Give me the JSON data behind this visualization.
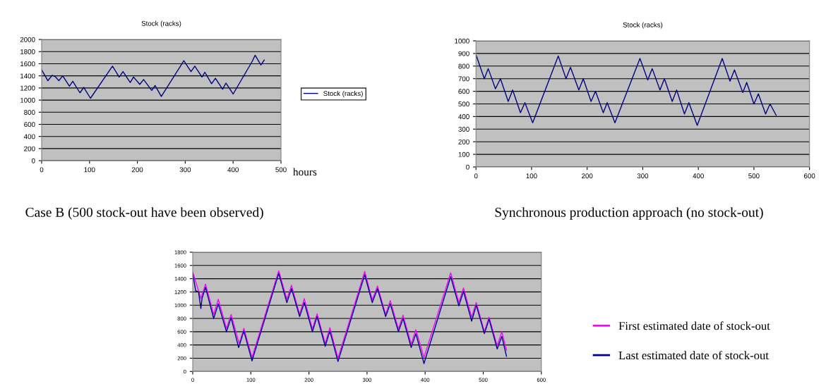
{
  "chart_data": [
    {
      "type": "line",
      "title": "Stock (racks)",
      "xlabel": "hours",
      "annotations": [
        "Case B (500 stock-out have been observed)"
      ],
      "xlim": [
        0,
        500
      ],
      "xticks": [
        0,
        100,
        200,
        300,
        400,
        500
      ],
      "ylim": [
        0,
        2000
      ],
      "yticks": [
        0,
        200,
        400,
        600,
        800,
        1000,
        1200,
        1400,
        1600,
        1800,
        2000
      ],
      "grid": "y",
      "legend": "right",
      "marker": "none",
      "line_style": "solid",
      "series": [
        {
          "name": "Stock (racks)",
          "color": "#000080",
          "x": [
            0,
            13,
            22,
            28,
            36,
            44,
            58,
            65,
            80,
            88,
            102,
            148,
            162,
            170,
            185,
            192,
            205,
            213,
            230,
            237,
            250,
            290,
            297,
            312,
            320,
            335,
            341,
            355,
            363,
            378,
            385,
            400,
            440,
            446,
            458,
            465
          ],
          "values": [
            1500,
            1320,
            1410,
            1390,
            1320,
            1400,
            1230,
            1310,
            1120,
            1210,
            1030,
            1560,
            1380,
            1470,
            1290,
            1380,
            1260,
            1340,
            1160,
            1240,
            1060,
            1560,
            1650,
            1470,
            1560,
            1380,
            1460,
            1270,
            1360,
            1180,
            1280,
            1100,
            1640,
            1740,
            1580,
            1660
          ]
        }
      ]
    },
    {
      "type": "line",
      "title": "Stock (racks)",
      "annotations": [
        "Synchronous production approach (no stock-out)"
      ],
      "xlim": [
        0,
        600
      ],
      "xticks": [
        0,
        100,
        200,
        300,
        400,
        500,
        600
      ],
      "ylim": [
        0,
        1000
      ],
      "yticks": [
        0,
        100,
        200,
        300,
        400,
        500,
        600,
        700,
        800,
        900,
        1000
      ],
      "grid": "y",
      "marker": "none",
      "line_style": "solid",
      "series": [
        {
          "color": "#000080",
          "x": [
            0,
            15,
            22,
            35,
            44,
            58,
            66,
            80,
            88,
            102,
            148,
            162,
            170,
            185,
            193,
            207,
            215,
            229,
            236,
            250,
            295,
            309,
            317,
            331,
            339,
            353,
            361,
            375,
            383,
            398,
            443,
            457,
            465,
            480,
            487,
            500,
            508,
            521,
            529,
            540
          ],
          "values": [
            890,
            700,
            780,
            620,
            700,
            520,
            610,
            430,
            510,
            350,
            880,
            700,
            790,
            610,
            700,
            520,
            600,
            430,
            510,
            350,
            860,
            690,
            780,
            610,
            700,
            520,
            610,
            420,
            510,
            330,
            860,
            680,
            770,
            590,
            670,
            500,
            580,
            420,
            500,
            410
          ]
        }
      ]
    },
    {
      "type": "line",
      "xlim": [
        0,
        600
      ],
      "xticks": [
        0,
        100,
        200,
        300,
        400,
        500,
        600
      ],
      "ylim": [
        0,
        1800
      ],
      "yticks": [
        0,
        200,
        400,
        600,
        800,
        1000,
        1200,
        1400,
        1600,
        1800
      ],
      "grid": "y",
      "legend": "right",
      "marker": "none",
      "line_style": "solid",
      "series": [
        {
          "name": "First estimated date of stock-out",
          "color": "#ff00ff",
          "x": [
            0,
            14,
            22,
            36,
            44,
            58,
            66,
            80,
            88,
            102,
            148,
            162,
            170,
            184,
            192,
            206,
            214,
            228,
            236,
            250,
            296,
            309,
            318,
            332,
            340,
            354,
            362,
            376,
            384,
            398,
            444,
            458,
            466,
            480,
            488,
            502,
            510,
            524,
            532,
            540
          ],
          "values": [
            1500,
            1100,
            1320,
            860,
            1090,
            650,
            860,
            420,
            650,
            210,
            1520,
            1090,
            1300,
            860,
            1100,
            640,
            870,
            420,
            660,
            200,
            1510,
            1080,
            1290,
            860,
            1070,
            640,
            850,
            410,
            630,
            210,
            1490,
            1040,
            1260,
            820,
            1040,
            600,
            820,
            390,
            600,
            320
          ]
        },
        {
          "name": "Last estimated date of stock-out",
          "color": "#000099",
          "x": [
            0,
            5,
            10,
            14,
            16,
            22,
            36,
            44,
            58,
            66,
            79,
            88,
            102,
            148,
            162,
            170,
            184,
            192,
            206,
            214,
            228,
            236,
            250,
            296,
            309,
            318,
            332,
            340,
            354,
            362,
            376,
            384,
            398,
            444,
            458,
            466,
            480,
            488,
            502,
            510,
            524,
            532,
            540
          ],
          "values": [
            1480,
            1220,
            1200,
            950,
            1100,
            1270,
            800,
            1020,
            600,
            810,
            360,
            610,
            160,
            1480,
            1040,
            1250,
            830,
            1040,
            600,
            830,
            380,
            610,
            150,
            1460,
            1040,
            1250,
            830,
            1020,
            600,
            800,
            360,
            570,
            120,
            1430,
            990,
            1210,
            760,
            1000,
            570,
            790,
            340,
            530,
            230
          ]
        }
      ]
    }
  ]
}
